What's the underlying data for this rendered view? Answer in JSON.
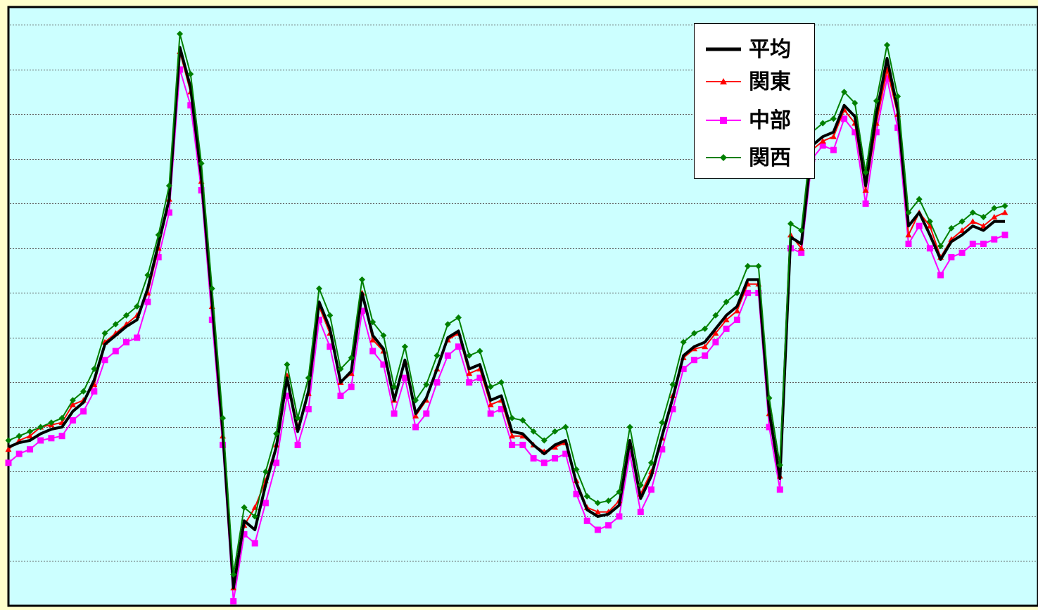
{
  "chart_data": {
    "type": "line",
    "title": "",
    "xlabel": "",
    "ylabel": "",
    "ylim": [
      0,
      13.4
    ],
    "grid": true,
    "legend_position": "top-right",
    "colors": {
      "plot_background": "#ccffff",
      "page_background": "#ffffcc",
      "axes": "#000000",
      "grid": "#555555"
    },
    "series": [
      {
        "name": "平均",
        "color": "#000000",
        "marker": "none",
        "values": [
          3.55,
          3.65,
          3.7,
          3.85,
          3.95,
          4.0,
          4.35,
          4.55,
          5.05,
          5.85,
          6.05,
          6.25,
          6.4,
          7.1,
          8.1,
          9.1,
          12.5,
          11.6,
          9.6,
          6.8,
          3.9,
          0.4,
          1.9,
          1.7,
          2.7,
          3.55,
          5.1,
          3.9,
          4.8,
          6.8,
          6.2,
          5.0,
          5.25,
          7.0,
          6.05,
          5.75,
          4.6,
          5.5,
          4.3,
          4.65,
          5.3,
          6.0,
          6.15,
          5.3,
          5.4,
          4.6,
          4.7,
          3.9,
          3.85,
          3.6,
          3.4,
          3.6,
          3.7,
          2.75,
          2.15,
          2.0,
          2.05,
          2.25,
          3.7,
          2.4,
          2.9,
          3.8,
          4.65,
          5.6,
          5.8,
          5.9,
          6.2,
          6.5,
          6.7,
          7.3,
          7.3,
          4.35,
          2.85,
          8.25,
          8.1,
          10.3,
          10.5,
          10.6,
          11.2,
          10.95,
          9.4,
          11.0,
          12.25,
          11.1,
          8.5,
          8.8,
          8.3,
          7.75,
          8.15,
          8.3,
          8.5,
          8.4,
          8.6,
          8.6
        ]
      },
      {
        "name": "関東",
        "color": "#ff0000",
        "marker": "triangle",
        "values": [
          3.5,
          3.7,
          3.8,
          4.0,
          4.05,
          4.1,
          4.5,
          4.6,
          4.95,
          5.9,
          6.1,
          6.3,
          6.5,
          7.0,
          8.0,
          9.1,
          12.4,
          11.5,
          9.5,
          6.7,
          3.8,
          0.4,
          1.8,
          2.2,
          2.8,
          3.6,
          5.15,
          4.0,
          4.75,
          6.7,
          6.1,
          5.0,
          5.2,
          7.0,
          5.95,
          5.7,
          4.6,
          5.45,
          4.25,
          4.6,
          5.3,
          5.95,
          6.1,
          5.2,
          5.3,
          4.5,
          4.6,
          3.8,
          3.8,
          3.6,
          3.45,
          3.55,
          3.65,
          2.8,
          2.2,
          2.1,
          2.1,
          2.35,
          3.6,
          2.5,
          3.0,
          3.75,
          4.7,
          5.55,
          5.75,
          5.8,
          6.1,
          6.4,
          6.6,
          7.2,
          7.2,
          4.3,
          2.9,
          8.3,
          8.0,
          10.2,
          10.4,
          10.5,
          11.1,
          10.8,
          9.3,
          10.8,
          12.0,
          11.0,
          8.3,
          8.8,
          8.5,
          7.8,
          8.2,
          8.4,
          8.6,
          8.5,
          8.7,
          8.8
        ]
      },
      {
        "name": "中部",
        "color": "#ff00ff",
        "marker": "square",
        "values": [
          3.2,
          3.4,
          3.5,
          3.7,
          3.75,
          3.8,
          4.15,
          4.35,
          4.8,
          5.5,
          5.7,
          5.9,
          6.0,
          6.8,
          7.8,
          8.8,
          12.0,
          11.2,
          9.3,
          6.4,
          3.6,
          0.1,
          1.6,
          1.4,
          2.3,
          3.2,
          4.7,
          3.6,
          4.4,
          6.4,
          5.8,
          4.7,
          4.9,
          6.6,
          5.7,
          5.4,
          4.3,
          5.1,
          4.0,
          4.3,
          5.0,
          5.6,
          5.8,
          5.0,
          5.1,
          4.3,
          4.4,
          3.6,
          3.6,
          3.3,
          3.2,
          3.3,
          3.4,
          2.5,
          1.9,
          1.7,
          1.8,
          2.0,
          3.4,
          2.1,
          2.6,
          3.5,
          4.4,
          5.3,
          5.5,
          5.6,
          5.9,
          6.2,
          6.4,
          7.0,
          7.0,
          4.0,
          2.6,
          8.0,
          7.9,
          10.0,
          10.3,
          10.2,
          10.9,
          10.6,
          9.0,
          10.6,
          11.8,
          10.7,
          8.1,
          8.5,
          8.0,
          7.4,
          7.8,
          7.9,
          8.1,
          8.1,
          8.2,
          8.3
        ]
      },
      {
        "name": "関西",
        "color": "#008000",
        "marker": "diamond",
        "values": [
          3.7,
          3.8,
          3.9,
          4.0,
          4.1,
          4.2,
          4.6,
          4.8,
          5.3,
          6.1,
          6.3,
          6.5,
          6.7,
          7.4,
          8.3,
          9.4,
          12.8,
          11.9,
          9.9,
          7.1,
          4.2,
          0.7,
          2.2,
          2.0,
          3.0,
          3.85,
          5.4,
          4.2,
          5.1,
          7.1,
          6.5,
          5.3,
          5.55,
          7.3,
          6.35,
          6.05,
          4.9,
          5.8,
          4.6,
          4.95,
          5.6,
          6.3,
          6.45,
          5.6,
          5.7,
          4.9,
          5.0,
          4.2,
          4.15,
          3.9,
          3.7,
          3.9,
          4.0,
          3.05,
          2.45,
          2.3,
          2.35,
          2.55,
          4.0,
          2.7,
          3.2,
          4.1,
          4.95,
          5.9,
          6.1,
          6.2,
          6.5,
          6.8,
          7.0,
          7.6,
          7.6,
          4.65,
          3.15,
          8.55,
          8.4,
          10.6,
          10.8,
          10.9,
          11.5,
          11.25,
          9.7,
          11.3,
          12.55,
          11.4,
          8.8,
          9.1,
          8.6,
          8.05,
          8.45,
          8.6,
          8.8,
          8.7,
          8.9,
          8.95
        ]
      }
    ]
  }
}
